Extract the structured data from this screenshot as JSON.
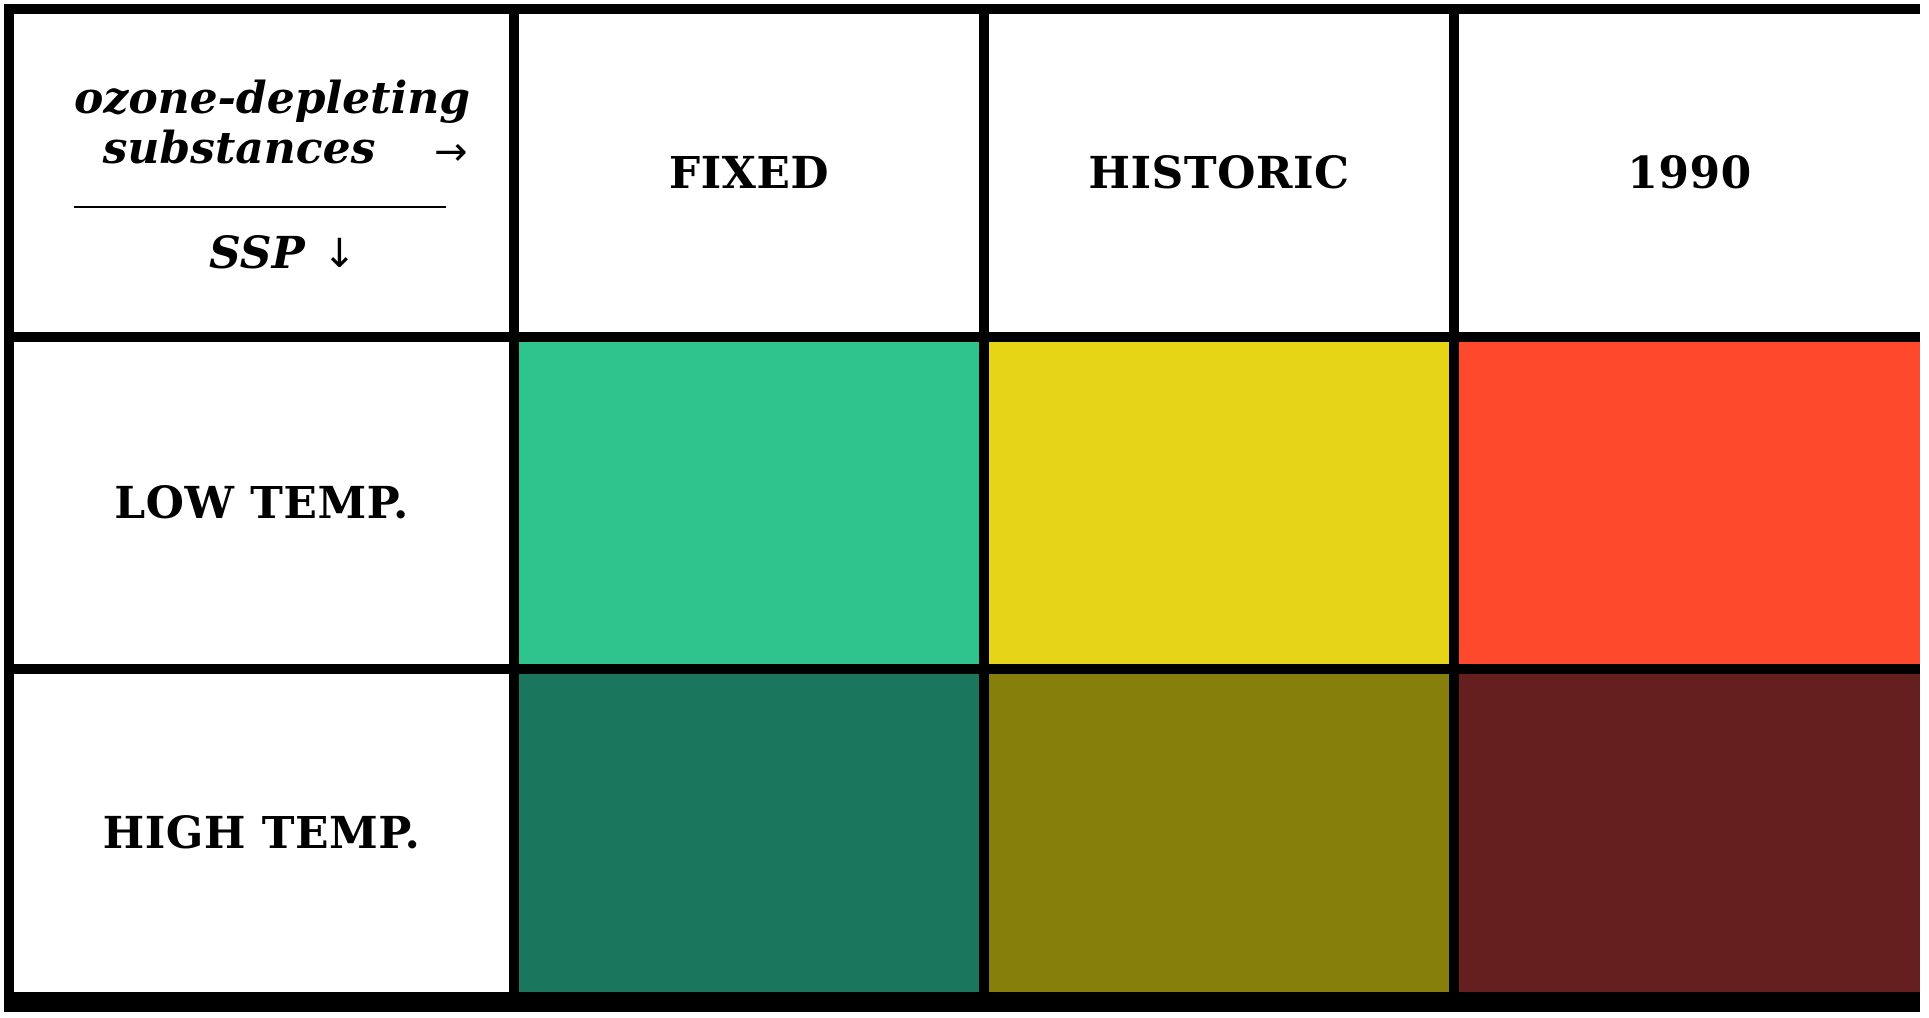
{
  "corner": {
    "line1": "ozone-depleting",
    "line2": "substances",
    "arrow_right": "→",
    "row_axis_label": "SSP",
    "arrow_down": "↓"
  },
  "columns": [
    "FIXED",
    "HISTORIC",
    "1990"
  ],
  "rows": [
    {
      "label": "LOW TEMP.",
      "colors": [
        "#2FC38E",
        "#E6D416",
        "#FF492C"
      ]
    },
    {
      "label": "HIGH TEMP.",
      "colors": [
        "#1A775E",
        "#877F0C",
        "#651F1F"
      ]
    }
  ]
}
